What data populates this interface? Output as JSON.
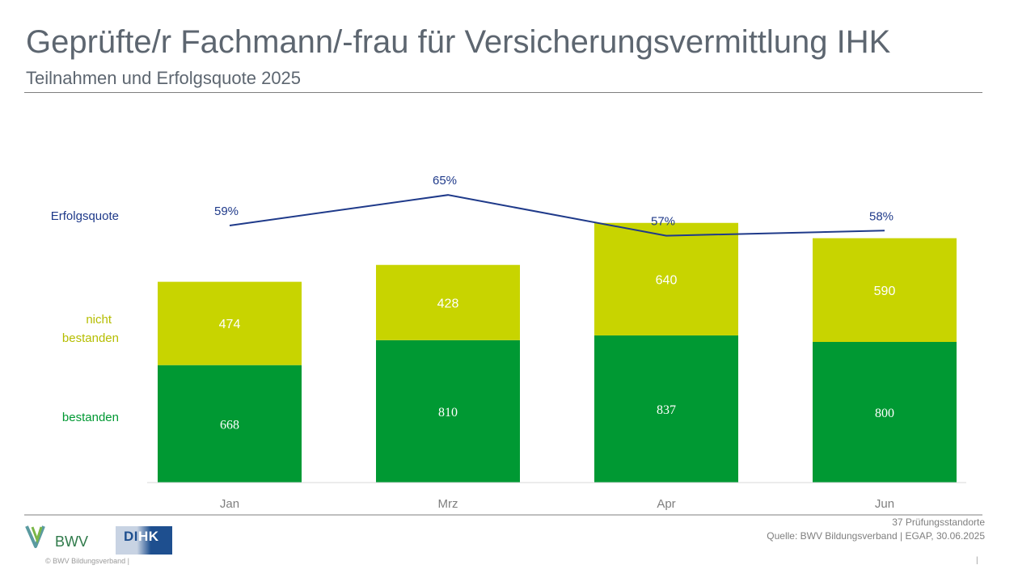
{
  "header": {
    "title": "Geprüfte/r Fachmann/-frau für Versicherungsvermittlung IHK",
    "subtitle": "Teilnahmen und Erfolgsquote 2025"
  },
  "chart_data": {
    "type": "bar",
    "stacked": true,
    "categories": [
      "Jan",
      "Mrz",
      "Apr",
      "Jun"
    ],
    "series": [
      {
        "name": "bestanden",
        "values": [
          668,
          810,
          837,
          800
        ],
        "color": "#009933"
      },
      {
        "name": "nicht bestanden",
        "values": [
          474,
          428,
          640,
          590
        ],
        "color": "#c8d400"
      }
    ],
    "line": {
      "name": "Erfolgsquote",
      "values": [
        59,
        65,
        57,
        58
      ],
      "labels": [
        "59%",
        "65%",
        "57%",
        "58%"
      ],
      "color": "#1f3a8a"
    },
    "legend_labels": {
      "line": "Erfolgsquote",
      "nicht_bestanden_line1": "nicht",
      "nicht_bestanden_line2": "bestanden",
      "bestanden": "bestanden"
    },
    "grid": false,
    "legend": "left"
  },
  "footer": {
    "note1": "37 Prüfungsstandorte",
    "note2": "Quelle: BWV Bildungsverband | EGAP, 30.06.2025",
    "copyright": "©  BWV Bildungsverband  |",
    "page_bar": "|"
  },
  "logos": {
    "bwv": "BWV",
    "dihk_part1": "DI",
    "dihk_part2": "HK"
  },
  "colors": {
    "title": "#5d6670",
    "green": "#009933",
    "yellow_green": "#c8d400",
    "line_blue": "#1f3a8a",
    "bwv_teal": "#5a9aa0",
    "bwv_green": "#7ab648",
    "dihk_blue": "#1e4f8f"
  }
}
